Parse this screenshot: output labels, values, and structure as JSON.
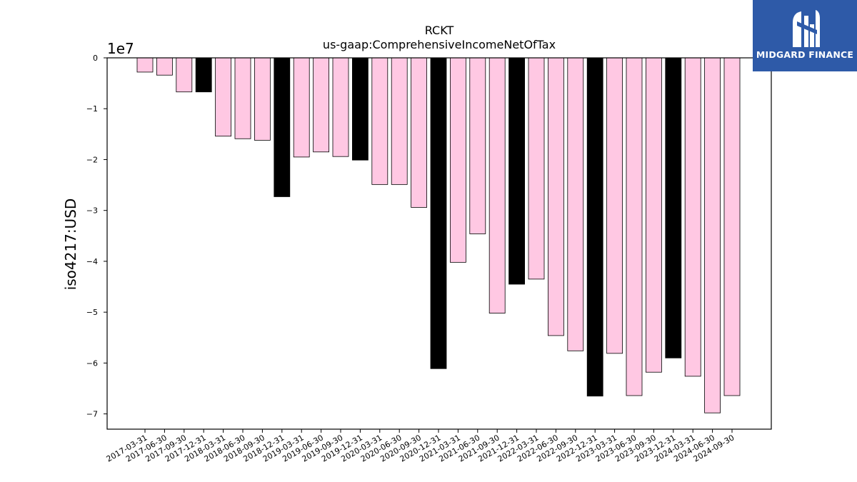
{
  "logo": {
    "text": "MIDGARD FINANCE",
    "icon": "mh-monogram-icon",
    "background": "#2e5aa8",
    "color": "#ffffff"
  },
  "chart_data": {
    "type": "bar",
    "title": "RCKT",
    "subtitle": "us-gaap:ComprehensiveIncomeNetOfTax",
    "xlabel": "",
    "ylabel": "iso4217:USD",
    "y_offset_label": "1e7",
    "y_scale": 10000000,
    "ylim": [
      -73000000,
      0
    ],
    "yticks": [
      0,
      -1,
      -2,
      -3,
      -4,
      -5,
      -6,
      -7
    ],
    "grid": false,
    "bar_colors": {
      "quarter": "#ffc8e3",
      "year_end": "#000000",
      "edge": "#000000"
    },
    "categories": [
      "2017-03-31",
      "2017-06-30",
      "2017-09-30",
      "2017-12-31",
      "2018-03-31",
      "2018-06-30",
      "2018-09-30",
      "2018-12-31",
      "2019-03-31",
      "2019-06-30",
      "2019-09-30",
      "2019-12-31",
      "2020-03-31",
      "2020-06-30",
      "2020-09-30",
      "2020-12-31",
      "2021-03-31",
      "2021-06-30",
      "2021-09-30",
      "2021-12-31",
      "2022-03-31",
      "2022-06-30",
      "2022-09-30",
      "2022-12-31",
      "2023-03-31",
      "2023-06-30",
      "2023-09-30",
      "2023-12-31",
      "2024-03-31",
      "2024-06-30",
      "2024-09-30"
    ],
    "values": [
      -2800000,
      -3400000,
      -6700000,
      -6700000,
      -15400000,
      -15900000,
      -16200000,
      -27300000,
      -19500000,
      -18500000,
      -19400000,
      -20100000,
      -24900000,
      -24900000,
      -29400000,
      -61100000,
      -40200000,
      -34600000,
      -50200000,
      -44500000,
      -43500000,
      -54600000,
      -57600000,
      -66500000,
      -58100000,
      -66400000,
      -61800000,
      -59000000,
      -62600000,
      -69800000,
      -66400000
    ],
    "year_end": [
      false,
      false,
      false,
      true,
      false,
      false,
      false,
      true,
      false,
      false,
      false,
      true,
      false,
      false,
      false,
      true,
      false,
      false,
      false,
      true,
      false,
      false,
      false,
      true,
      false,
      false,
      false,
      true,
      false,
      false,
      false
    ]
  }
}
